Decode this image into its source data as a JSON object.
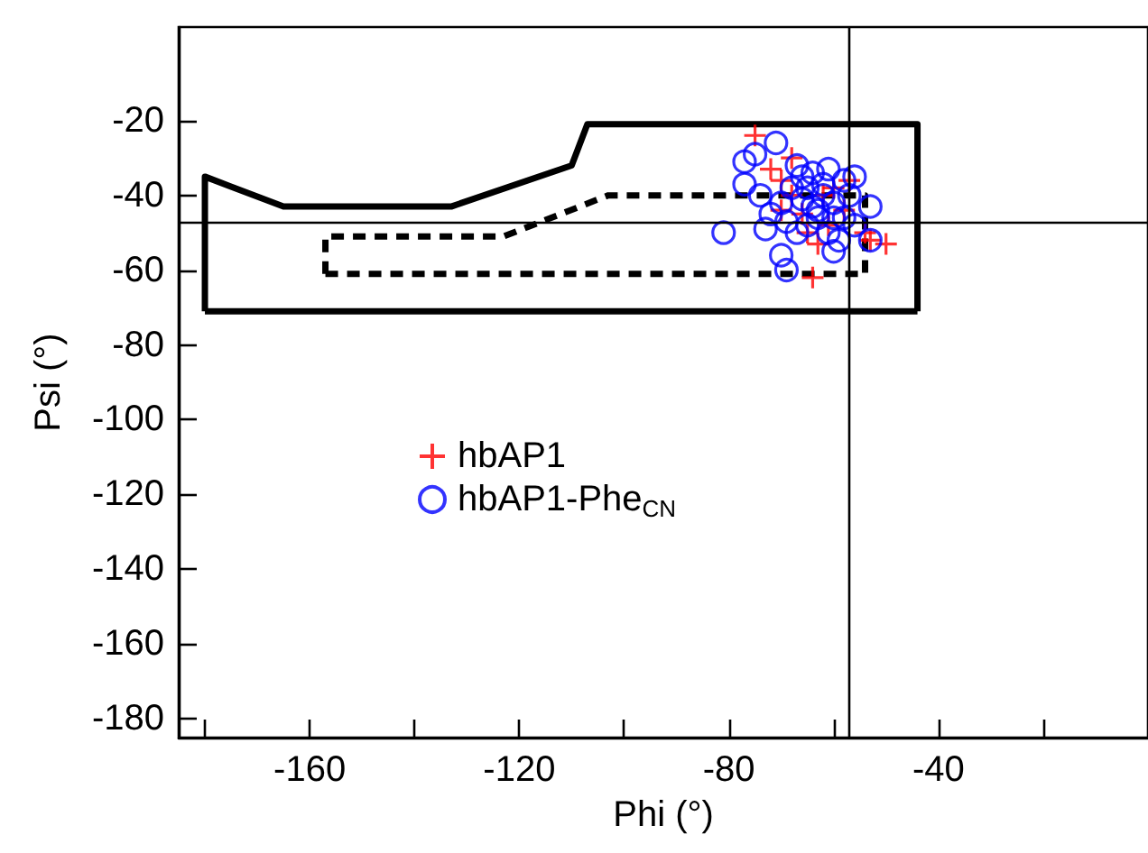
{
  "chart_data": {
    "type": "scatter",
    "xlabel": "Phi (°)",
    "ylabel": "Psi (°)",
    "xlim": [
      -185,
      0
    ],
    "ylim": [
      -185,
      5
    ],
    "xticks": [
      {
        "value": -180,
        "label": null
      },
      -160,
      {
        "value": -140,
        "label": null
      },
      -120,
      {
        "value": -100,
        "label": null
      },
      -80,
      {
        "value": -60,
        "label": null
      },
      -40,
      {
        "value": -20,
        "label": null
      }
    ],
    "yticks": [
      -180,
      -160,
      -140,
      -120,
      -100,
      -80,
      -60,
      -40,
      -20
    ],
    "grid": false,
    "legend": "left",
    "ref_lines": [
      {
        "axis": "x",
        "value": -57,
        "color": "#000000"
      },
      {
        "axis": "y",
        "value": -47,
        "color": "#000000"
      }
    ],
    "series": [
      {
        "type": "line",
        "color": "#000000",
        "line_style": "solid",
        "marker": "none",
        "x": [
          -180,
          -180,
          -165,
          -133,
          -110,
          -107,
          -44,
          -44
        ],
        "values": [
          -71,
          -35,
          -43,
          -43,
          -32,
          -21,
          -21,
          -71
        ]
      },
      {
        "type": "line",
        "color": "#000000",
        "line_style": "solid",
        "marker": "none",
        "x": [
          -180,
          -44
        ],
        "values": [
          -71,
          -71
        ]
      },
      {
        "type": "line",
        "color": "#000000",
        "line_style": "dashed",
        "marker": "none",
        "x": [
          -157,
          -157,
          -123,
          -103,
          -54,
          -54
        ],
        "values": [
          -61,
          -51,
          -51,
          -40,
          -40,
          -61
        ]
      },
      {
        "type": "line",
        "color": "#000000",
        "line_style": "dashed",
        "marker": "none",
        "x": [
          -157,
          -54
        ],
        "values": [
          -61,
          -61
        ]
      },
      {
        "name": "hbAP1",
        "color": "#ff0000",
        "marker": "cross",
        "x": [
          -75,
          -64,
          -50,
          -53,
          -72,
          -70,
          -68,
          -66,
          -62,
          -60,
          -58,
          -65,
          -70,
          -61,
          -57,
          -63,
          -54,
          -68
        ],
        "values": [
          -24,
          -62,
          -53,
          -52,
          -33,
          -36,
          -30,
          -45,
          -40,
          -38,
          -44,
          -50,
          -44,
          -48,
          -36,
          -53,
          -50,
          -40
        ]
      },
      {
        "name": "hbAP1-Phe$_{CN}$",
        "color": "#0000ff",
        "marker": "circle",
        "x": [
          -81,
          -77,
          -75,
          -71,
          -77,
          -73,
          -70,
          -69,
          -60,
          -56,
          -53,
          -53,
          -74,
          -72,
          -67,
          -64,
          -61,
          -58,
          -68,
          -66,
          -64,
          -62,
          -60,
          -58,
          -63,
          -65,
          -61,
          -67,
          -59,
          -56,
          -70,
          -62,
          -65,
          -60,
          -57,
          -66,
          -63,
          -69
        ],
        "values": [
          -50,
          -31,
          -29,
          -26,
          -37,
          -49,
          -56,
          -60,
          -55,
          -35,
          -43,
          -52,
          -40,
          -45,
          -32,
          -34,
          -33,
          -36,
          -38,
          -41,
          -43,
          -40,
          -42,
          -46,
          -46,
          -48,
          -50,
          -50,
          -52,
          -48,
          -42,
          -37,
          -38,
          -46,
          -40,
          -35,
          -44,
          -47
        ]
      }
    ]
  }
}
